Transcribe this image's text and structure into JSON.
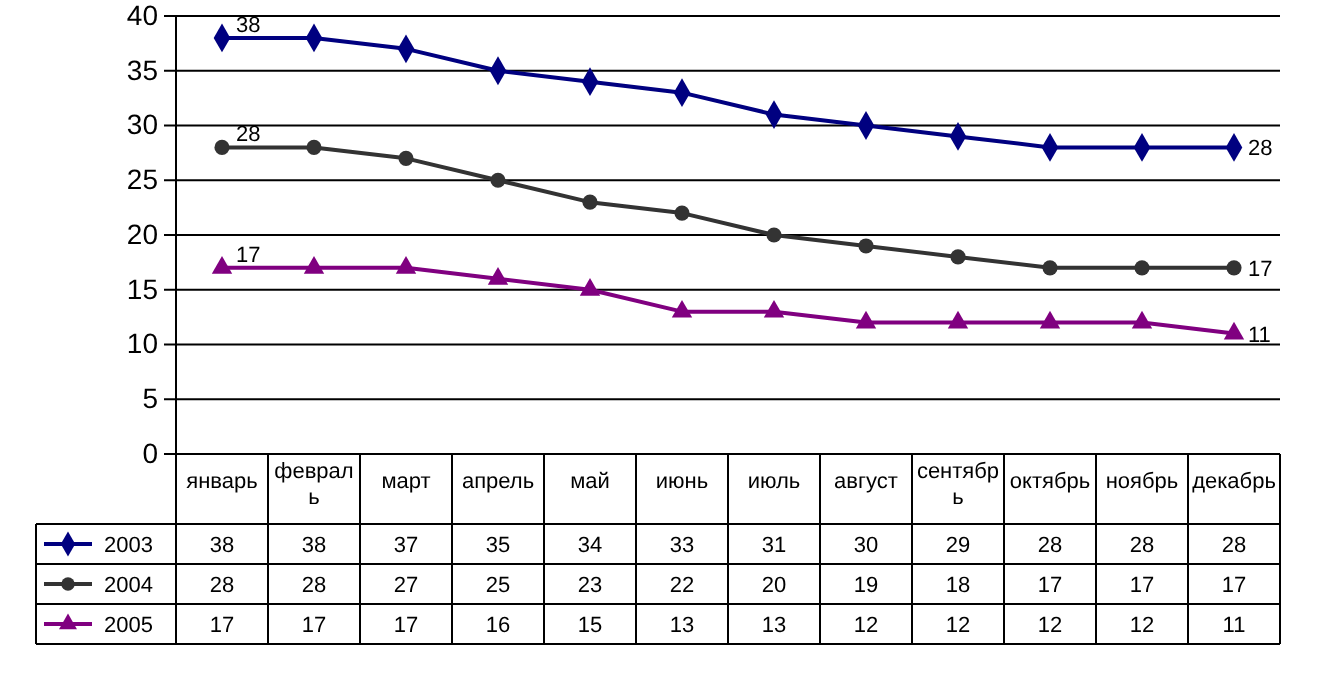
{
  "chart_data": {
    "type": "line",
    "categories": [
      "январь",
      "февраль",
      "март",
      "апрель",
      "май",
      "июнь",
      "июль",
      "август",
      "сентябрь",
      "октябрь",
      "ноябрь",
      "декабрь"
    ],
    "series": [
      {
        "name": "2003",
        "color": "#000080",
        "marker": "diamond",
        "values": [
          38,
          38,
          37,
          35,
          34,
          33,
          31,
          30,
          29,
          28,
          28,
          28
        ]
      },
      {
        "name": "2004",
        "color": "#333333",
        "marker": "circle",
        "values": [
          28,
          28,
          27,
          25,
          23,
          22,
          20,
          19,
          18,
          17,
          17,
          17
        ]
      },
      {
        "name": "2005",
        "color": "#800080",
        "marker": "triangle",
        "values": [
          17,
          17,
          17,
          16,
          15,
          13,
          13,
          12,
          12,
          12,
          12,
          11
        ]
      }
    ],
    "ylim": [
      0,
      40
    ],
    "yticks": [
      0,
      5,
      10,
      15,
      20,
      25,
      30,
      35,
      40
    ],
    "annotations": [
      {
        "text": "38",
        "x": "январь",
        "y": 38
      },
      {
        "text": "28",
        "x": "январь",
        "y": 28
      },
      {
        "text": "17",
        "x": "январь",
        "y": 17
      },
      {
        "text": "28",
        "x": "декабрь",
        "y": 28
      },
      {
        "text": "17",
        "x": "декабрь",
        "y": 17
      },
      {
        "text": "11",
        "x": "декабрь",
        "y": 11
      }
    ],
    "grid": "y",
    "data_labels": true,
    "legend": "bottom left"
  }
}
